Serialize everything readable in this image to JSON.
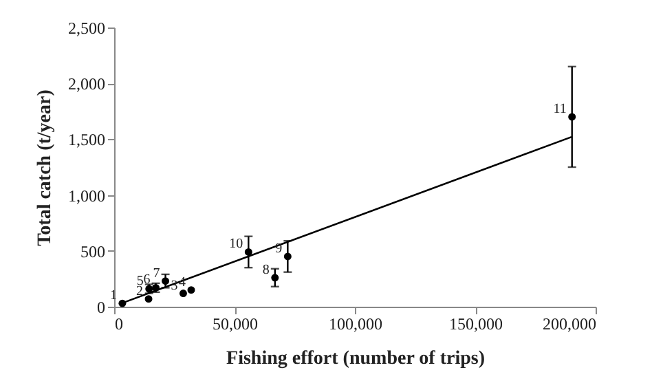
{
  "chart_data": {
    "type": "scatter",
    "xlabel": "Fishing effort (number of trips)",
    "ylabel": "Total  catch (t/year)",
    "xlim": [
      0,
      200000
    ],
    "xticks": [
      0,
      {
        "value": 50000,
        "label": "50,000"
      },
      {
        "value": 100000,
        "label": "100,000"
      },
      {
        "value": 150000,
        "label": "150,000"
      },
      {
        "value": 200000,
        "label": "200,000"
      }
    ],
    "ylim": [
      0,
      2500
    ],
    "yticks": [
      0,
      500,
      {
        "value": 1000,
        "label": "1,000"
      },
      {
        "value": 1500,
        "label": "1,500"
      },
      {
        "value": 2000,
        "label": "2,000"
      },
      {
        "value": 2500,
        "label": "2,500"
      }
    ],
    "series": [
      {
        "marker": "circle",
        "color": "#000000",
        "x": [
          3400,
          14300,
          28700,
          32000,
          14500,
          17300,
          21300,
          66800,
          72100,
          55800,
          190200
        ],
        "values": [
          30,
          70,
          120,
          150,
          160,
          170,
          230,
          260,
          450,
          490,
          1700
        ],
        "errors": [
          null,
          null,
          null,
          null,
          40,
          40,
          60,
          80,
          [
            310,
            590
          ],
          140,
          [
            1250,
            2150
          ]
        ]
      },
      {
        "type": "line",
        "color": "#000000",
        "x": [
          3000,
          190000
        ],
        "values": [
          30,
          1520
        ]
      }
    ],
    "annotations": [
      {
        "text": "1",
        "x": 3400,
        "y": 30
      },
      {
        "text": "2",
        "x": 14300,
        "y": 70
      },
      {
        "text": "3",
        "x": 28700,
        "y": 120
      },
      {
        "text": "4",
        "x": 32000,
        "y": 150
      },
      {
        "text": "5",
        "x": 14500,
        "y": 160
      },
      {
        "text": "6",
        "x": 17300,
        "y": 170
      },
      {
        "text": "7",
        "x": 21300,
        "y": 230
      },
      {
        "text": "8",
        "x": 66800,
        "y": 260
      },
      {
        "text": "9",
        "x": 72100,
        "y": 450
      },
      {
        "text": "10",
        "x": 55800,
        "y": 490
      },
      {
        "text": "11",
        "x": 190200,
        "y": 1700
      }
    ]
  }
}
